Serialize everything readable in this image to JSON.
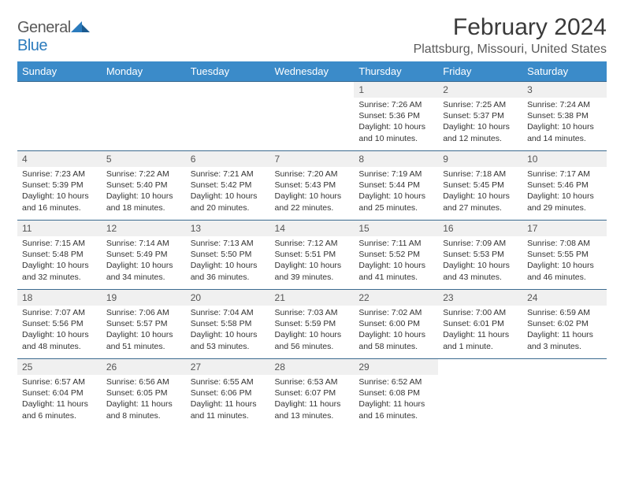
{
  "brand": {
    "name_a": "General",
    "name_b": "Blue"
  },
  "title": "February 2024",
  "location": "Plattsburg, Missouri, United States",
  "colors": {
    "header_bg": "#3b8bc9",
    "header_text": "#ffffff",
    "daynum_bg": "#f0f0f0",
    "row_border": "#3b6a8f",
    "brand_gray": "#5a5a5a",
    "brand_blue": "#2b7bbd"
  },
  "weekdays": [
    "Sunday",
    "Monday",
    "Tuesday",
    "Wednesday",
    "Thursday",
    "Friday",
    "Saturday"
  ],
  "first_day_index": 4,
  "days": [
    {
      "n": "1",
      "sunrise": "7:26 AM",
      "sunset": "5:36 PM",
      "daylight": "10 hours and 10 minutes."
    },
    {
      "n": "2",
      "sunrise": "7:25 AM",
      "sunset": "5:37 PM",
      "daylight": "10 hours and 12 minutes."
    },
    {
      "n": "3",
      "sunrise": "7:24 AM",
      "sunset": "5:38 PM",
      "daylight": "10 hours and 14 minutes."
    },
    {
      "n": "4",
      "sunrise": "7:23 AM",
      "sunset": "5:39 PM",
      "daylight": "10 hours and 16 minutes."
    },
    {
      "n": "5",
      "sunrise": "7:22 AM",
      "sunset": "5:40 PM",
      "daylight": "10 hours and 18 minutes."
    },
    {
      "n": "6",
      "sunrise": "7:21 AM",
      "sunset": "5:42 PM",
      "daylight": "10 hours and 20 minutes."
    },
    {
      "n": "7",
      "sunrise": "7:20 AM",
      "sunset": "5:43 PM",
      "daylight": "10 hours and 22 minutes."
    },
    {
      "n": "8",
      "sunrise": "7:19 AM",
      "sunset": "5:44 PM",
      "daylight": "10 hours and 25 minutes."
    },
    {
      "n": "9",
      "sunrise": "7:18 AM",
      "sunset": "5:45 PM",
      "daylight": "10 hours and 27 minutes."
    },
    {
      "n": "10",
      "sunrise": "7:17 AM",
      "sunset": "5:46 PM",
      "daylight": "10 hours and 29 minutes."
    },
    {
      "n": "11",
      "sunrise": "7:15 AM",
      "sunset": "5:48 PM",
      "daylight": "10 hours and 32 minutes."
    },
    {
      "n": "12",
      "sunrise": "7:14 AM",
      "sunset": "5:49 PM",
      "daylight": "10 hours and 34 minutes."
    },
    {
      "n": "13",
      "sunrise": "7:13 AM",
      "sunset": "5:50 PM",
      "daylight": "10 hours and 36 minutes."
    },
    {
      "n": "14",
      "sunrise": "7:12 AM",
      "sunset": "5:51 PM",
      "daylight": "10 hours and 39 minutes."
    },
    {
      "n": "15",
      "sunrise": "7:11 AM",
      "sunset": "5:52 PM",
      "daylight": "10 hours and 41 minutes."
    },
    {
      "n": "16",
      "sunrise": "7:09 AM",
      "sunset": "5:53 PM",
      "daylight": "10 hours and 43 minutes."
    },
    {
      "n": "17",
      "sunrise": "7:08 AM",
      "sunset": "5:55 PM",
      "daylight": "10 hours and 46 minutes."
    },
    {
      "n": "18",
      "sunrise": "7:07 AM",
      "sunset": "5:56 PM",
      "daylight": "10 hours and 48 minutes."
    },
    {
      "n": "19",
      "sunrise": "7:06 AM",
      "sunset": "5:57 PM",
      "daylight": "10 hours and 51 minutes."
    },
    {
      "n": "20",
      "sunrise": "7:04 AM",
      "sunset": "5:58 PM",
      "daylight": "10 hours and 53 minutes."
    },
    {
      "n": "21",
      "sunrise": "7:03 AM",
      "sunset": "5:59 PM",
      "daylight": "10 hours and 56 minutes."
    },
    {
      "n": "22",
      "sunrise": "7:02 AM",
      "sunset": "6:00 PM",
      "daylight": "10 hours and 58 minutes."
    },
    {
      "n": "23",
      "sunrise": "7:00 AM",
      "sunset": "6:01 PM",
      "daylight": "11 hours and 1 minute."
    },
    {
      "n": "24",
      "sunrise": "6:59 AM",
      "sunset": "6:02 PM",
      "daylight": "11 hours and 3 minutes."
    },
    {
      "n": "25",
      "sunrise": "6:57 AM",
      "sunset": "6:04 PM",
      "daylight": "11 hours and 6 minutes."
    },
    {
      "n": "26",
      "sunrise": "6:56 AM",
      "sunset": "6:05 PM",
      "daylight": "11 hours and 8 minutes."
    },
    {
      "n": "27",
      "sunrise": "6:55 AM",
      "sunset": "6:06 PM",
      "daylight": "11 hours and 11 minutes."
    },
    {
      "n": "28",
      "sunrise": "6:53 AM",
      "sunset": "6:07 PM",
      "daylight": "11 hours and 13 minutes."
    },
    {
      "n": "29",
      "sunrise": "6:52 AM",
      "sunset": "6:08 PM",
      "daylight": "11 hours and 16 minutes."
    }
  ],
  "labels": {
    "sunrise": "Sunrise:",
    "sunset": "Sunset:",
    "daylight": "Daylight:"
  }
}
